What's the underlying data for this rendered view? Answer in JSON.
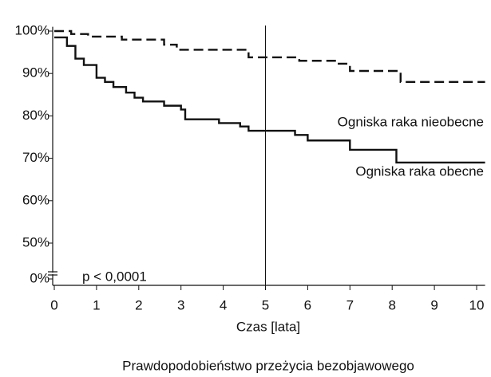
{
  "chart_data": {
    "type": "step",
    "caption": "Prawdopodobieństwo przeżycia bezobjawowego",
    "x_label": "Czas [lata]",
    "annotation": "p < 0,0001",
    "xlim": [
      0,
      10.2
    ],
    "xticks": [
      0,
      1,
      2,
      3,
      4,
      5,
      6,
      7,
      8,
      9,
      10
    ],
    "ylim": [
      0,
      101
    ],
    "y_break": [
      0,
      50
    ],
    "yticks": [
      {
        "value": 0,
        "label": "0%"
      },
      {
        "value": 50,
        "label": "50%"
      },
      {
        "value": 60,
        "label": "60%"
      },
      {
        "value": 70,
        "label": "70%"
      },
      {
        "value": 80,
        "label": "80%"
      },
      {
        "value": 90,
        "label": "90%"
      },
      {
        "value": 100,
        "label": "100%"
      }
    ],
    "vline": 5,
    "series": [
      {
        "name": "Ogniska raka nieobecne",
        "color": "#111111",
        "dash": true,
        "x": [
          0,
          0.4,
          0.8,
          1.6,
          2.6,
          2.9,
          4.6,
          5.8,
          6.7,
          7.0,
          8.2
        ],
        "values": [
          100,
          99.3,
          98.7,
          98,
          96.8,
          95.6,
          93.8,
          93.0,
          92.3,
          90.6,
          88
        ]
      },
      {
        "name": "Ogniska raka obecne",
        "color": "#111111",
        "dash": false,
        "x": [
          0,
          0.3,
          0.5,
          0.7,
          1.0,
          1.2,
          1.4,
          1.7,
          1.9,
          2.1,
          2.6,
          3.0,
          3.1,
          3.9,
          4.4,
          4.6,
          5.7,
          6.0,
          7.0,
          8.1
        ],
        "values": [
          98.5,
          96.5,
          93.5,
          92,
          89,
          88,
          86.8,
          85.5,
          84.3,
          83.4,
          82.4,
          81.5,
          79.2,
          78.3,
          77.5,
          76.5,
          75.5,
          74.2,
          72,
          69
        ]
      }
    ]
  }
}
